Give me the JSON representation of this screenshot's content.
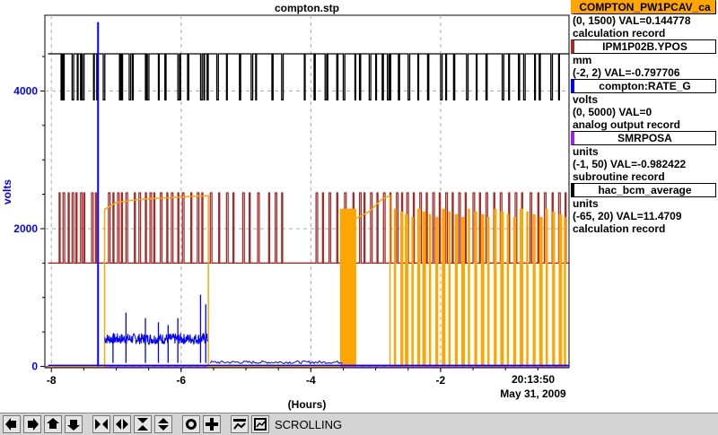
{
  "chart_data": {
    "type": "line",
    "title": "compton.stp",
    "xlabel": "(Hours)",
    "ylabel": "volts",
    "xlim": [
      -8.1,
      -0.02
    ],
    "ylim": [
      -20,
      5100
    ],
    "x_ticks": [
      -8,
      -6,
      -4,
      -2
    ],
    "y_ticks": [
      0,
      2000,
      4000
    ],
    "timestamp_time": "20:13:50",
    "timestamp_date": "May 31, 2009",
    "grid": true,
    "series": [
      {
        "name": "COMPTON_PW1PCAV_ca",
        "color": "#ffa500",
        "range": "(0, 1500)",
        "val": "VAL=0.144778",
        "desc": "calculation record",
        "fill": false
      },
      {
        "name": "IPM1P02B.YPOS",
        "color": "#a52a2a",
        "range": "(-2, 2)",
        "val": "VAL=-0.797706",
        "desc": "",
        "unit": "mm",
        "fill": false
      },
      {
        "name": "compton:RATE_G",
        "color": "#0000ff",
        "range": "(0, 5000)",
        "val": "VAL=0",
        "desc": "analog output record",
        "unit": "volts",
        "fill": false
      },
      {
        "name": "SMRPOSA",
        "color": "#a020f0",
        "range": "(-1, 50)",
        "val": "VAL=-0.982422",
        "desc": "subroutine record",
        "unit": "units",
        "fill": false
      },
      {
        "name": "hac_bcm_average",
        "color": "#000000",
        "range": "(-65, 20)",
        "val": "VAL=11.4709",
        "desc": "calculation record",
        "unit": "units",
        "fill": false
      }
    ],
    "levels": {
      "black_high": 4540,
      "black_low": 3870,
      "brown_high": 2520,
      "brown_low": 1500,
      "orange_plateau": 2480,
      "orange_spike_top": 2290,
      "blue_noise": 400,
      "blue_spike": 5000,
      "blue_spike_x": -7.28
    },
    "black_dips": [
      -7.85,
      -7.82,
      -7.68,
      -7.6,
      -7.55,
      -7.52,
      -7.35,
      -7.3,
      -7.2,
      -6.95,
      -6.92,
      -6.8,
      -6.75,
      -6.55,
      -6.52,
      -6.35,
      -6.25,
      -6.05,
      -6.02,
      -5.9,
      -5.7,
      -5.65,
      -5.6,
      -5.45,
      -5.3,
      -5.1,
      -4.92,
      -4.85,
      -4.6,
      -4.45,
      -4.1,
      -3.95,
      -3.78,
      -3.75,
      -3.6,
      -3.5,
      -3.32,
      -3.25,
      -3.1,
      -3.0,
      -2.9,
      -2.82,
      -2.78,
      -2.65,
      -2.5,
      -2.35,
      -2.2,
      -2.0,
      -1.92,
      -1.8,
      -1.6,
      -1.45,
      -1.3,
      -1.05,
      -0.95,
      -0.8,
      -0.72,
      -0.55,
      -0.48,
      -0.3,
      -0.18
    ],
    "brown_pulses": [
      -7.88,
      -7.82,
      -7.74,
      -7.68,
      -7.62,
      -7.55,
      -7.5,
      -7.38,
      -7.32,
      -7.12,
      -7.05,
      -6.98,
      -6.92,
      -6.85,
      -6.72,
      -6.65,
      -6.55,
      -6.48,
      -6.42,
      -6.32,
      -6.22,
      -6.15,
      -6.05,
      -5.98,
      -5.85,
      -5.75,
      -5.68,
      -5.55,
      -5.42,
      -5.3,
      -5.2,
      -5.05,
      -4.95,
      -4.82,
      -4.65,
      -4.55,
      -4.45,
      -3.92,
      -3.82,
      -3.72,
      -3.6,
      -3.48,
      -3.35,
      -3.25,
      -3.18,
      -3.08,
      -2.98,
      -2.88,
      -2.78,
      -2.68,
      -2.6,
      -2.52,
      -2.42,
      -2.32,
      -2.22,
      -2.12,
      -2.02,
      -1.92,
      -1.82,
      -1.72,
      -1.62,
      -1.5,
      -1.4,
      -1.3,
      -1.18,
      -1.08,
      -0.95,
      -0.85,
      -0.75,
      -0.62,
      -0.5,
      -0.4,
      -0.28,
      -0.18,
      -0.08
    ],
    "orange_bars": [
      -2.72,
      -2.62,
      -2.55,
      -2.45,
      -2.36,
      -2.28,
      -2.18,
      -2.08,
      -1.98,
      -1.88,
      -1.78,
      -1.68,
      -1.58,
      -1.48,
      -1.38,
      -1.28,
      -1.18,
      -1.08,
      -0.98,
      -0.88,
      -0.78,
      -0.68,
      -0.58,
      -0.48,
      -0.38,
      -0.28,
      -0.18,
      -0.1
    ]
  },
  "legend": [
    {
      "name": "COMPTON_PW1PCAV_ca",
      "color": "#ffa500",
      "line1": "(0, 1500) VAL=0.144778",
      "line2": "calculation record"
    },
    {
      "name": "IPM1P02B.YPOS",
      "color": "#a52a2a",
      "line1": "mm",
      "line2": "(-2, 2) VAL=-0.797706"
    },
    {
      "name": "compton:RATE_G",
      "color": "#0000ff",
      "line1": "volts",
      "line2": "(0, 5000) VAL=0",
      "line3": "analog output record"
    },
    {
      "name": "SMRPOSA",
      "color": "#a020f0",
      "line1": "units",
      "line2": "(-1, 50) VAL=-0.982422",
      "line3": "subroutine record"
    },
    {
      "name": "hac_bcm_average",
      "color": "#000000",
      "line1": "units",
      "line2": "(-65, 20) VAL=11.4709",
      "line3": "calculation record"
    }
  ],
  "toolbar": {
    "status": "SCROLLING",
    "buttons": [
      "pan-left-icon",
      "pan-right-icon",
      "pan-up-icon",
      "pan-down-icon",
      "zoom-in-x-icon",
      "zoom-out-x-icon",
      "zoom-in-y-icon",
      "zoom-out-y-icon",
      "auto-scale-icon",
      "add-icon",
      "config-icon",
      "scroll-icon"
    ]
  }
}
